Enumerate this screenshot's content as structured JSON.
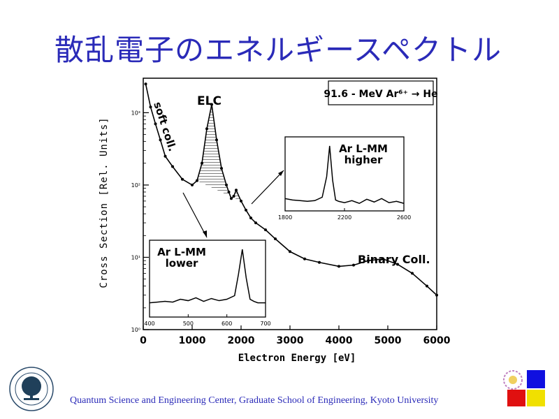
{
  "slide": {
    "title": "散乱電子のエネルギースペクトル",
    "footer": "Quantum Science and Engineering Center, Graduate School of Engineering, Kyoto University"
  },
  "colors": {
    "title": "#2a2ab8",
    "logo_blue": "#1010e0",
    "logo_red": "#e01010",
    "logo_yellow": "#f0e000"
  },
  "chart_data": {
    "type": "scatter",
    "title": "91.6 - MeV Ar⁶⁺ → He",
    "xlabel": "Electron Energy [eV]",
    "ylabel": "Cross Section [Rel. Units]",
    "x_ticks": [
      "0",
      "1000",
      "2000",
      "3000",
      "4000",
      "5000",
      "6000"
    ],
    "y_ticks": [
      "10⁰",
      "10¹",
      "10²",
      "10³"
    ],
    "xlim": [
      0,
      6000
    ],
    "ylim": [
      1,
      3000
    ],
    "y_scale": "log",
    "annotations": [
      "soft coll.",
      "ELC",
      "Binary Coll."
    ],
    "series": [
      {
        "x": [
          50,
          150,
          250,
          350,
          450,
          600,
          800,
          1000,
          1100,
          1200,
          1300,
          1400,
          1500,
          1600,
          1700,
          1750,
          1800,
          1850,
          1900,
          2000,
          2100,
          2200,
          2300,
          2500,
          2700,
          3000,
          3300,
          3600,
          4000,
          4300,
          4600,
          4900,
          5200,
          5500,
          5800,
          6000
        ],
        "y": [
          2500,
          1200,
          700,
          420,
          250,
          180,
          120,
          100,
          115,
          200,
          600,
          1300,
          420,
          170,
          100,
          80,
          65,
          70,
          85,
          60,
          45,
          35,
          30,
          24,
          18,
          12,
          9.5,
          8.5,
          7.5,
          7.8,
          9,
          9.5,
          8,
          6,
          4,
          3
        ]
      }
    ],
    "insets": [
      {
        "label": "Ar L-MM higher",
        "x_ticks": [
          "1800",
          "2200",
          "2600"
        ],
        "xlim": [
          1800,
          2600
        ],
        "x": [
          1800,
          1850,
          1900,
          1950,
          2000,
          2050,
          2080,
          2100,
          2120,
          2140,
          2160,
          2200,
          2250,
          2300,
          2350,
          2400,
          2450,
          2500,
          2550,
          2600
        ],
        "y": [
          0.18,
          0.16,
          0.15,
          0.14,
          0.15,
          0.2,
          0.5,
          0.95,
          0.45,
          0.16,
          0.14,
          0.12,
          0.15,
          0.11,
          0.17,
          0.13,
          0.18,
          0.12,
          0.14,
          0.11
        ]
      },
      {
        "label": "Ar L-MM lower",
        "x_ticks": [
          "400",
          "500",
          "600",
          "700"
        ],
        "xlim": [
          400,
          700
        ],
        "x": [
          400,
          420,
          440,
          460,
          480,
          500,
          520,
          540,
          560,
          580,
          600,
          620,
          630,
          640,
          650,
          660,
          670,
          680,
          700
        ],
        "y": [
          0.2,
          0.21,
          0.22,
          0.21,
          0.25,
          0.23,
          0.27,
          0.22,
          0.26,
          0.23,
          0.25,
          0.3,
          0.6,
          0.95,
          0.55,
          0.25,
          0.22,
          0.2,
          0.2
        ]
      }
    ]
  }
}
